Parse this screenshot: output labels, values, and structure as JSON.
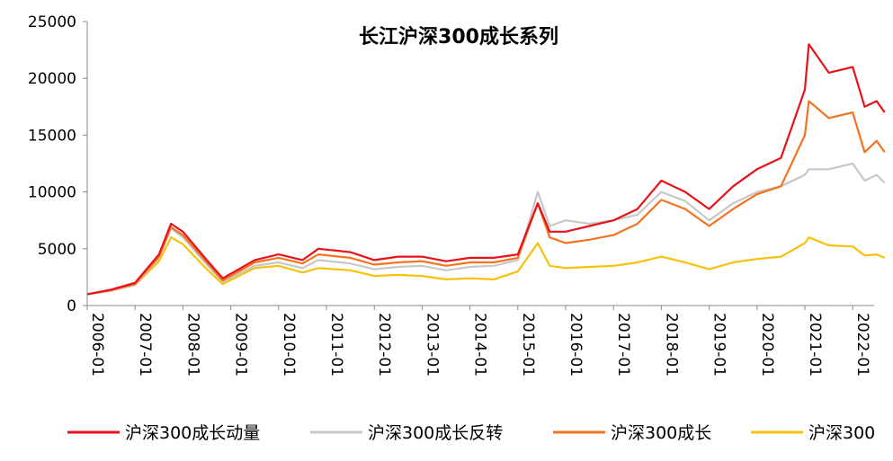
{
  "chart_data": {
    "type": "line",
    "title": "长江沪深300成长系列",
    "xlabel": "",
    "ylabel": "",
    "ylim": [
      0,
      25000
    ],
    "y_ticks": [
      0,
      5000,
      10000,
      15000,
      20000,
      25000
    ],
    "y_tick_labels": [
      "0",
      "5000",
      "10000",
      "15000",
      "20000",
      "25000"
    ],
    "x_tick_labels": [
      "2006-01",
      "2007-01",
      "2008-01",
      "2009-01",
      "2010-01",
      "2011-01",
      "2012-01",
      "2013-01",
      "2014-01",
      "2015-01",
      "2016-01",
      "2017-01",
      "2018-01",
      "2019-01",
      "2020-01",
      "2021-01",
      "2022-01"
    ],
    "legend_position": "bottom",
    "grid": false,
    "x": [
      "2006-01",
      "2006-07",
      "2007-01",
      "2007-07",
      "2007-10",
      "2008-01",
      "2008-07",
      "2008-11",
      "2009-07",
      "2010-01",
      "2010-07",
      "2010-11",
      "2011-07",
      "2012-01",
      "2012-07",
      "2013-01",
      "2013-07",
      "2014-01",
      "2014-07",
      "2015-01",
      "2015-06",
      "2015-09",
      "2016-01",
      "2016-07",
      "2017-01",
      "2017-07",
      "2018-01",
      "2018-07",
      "2019-01",
      "2019-07",
      "2020-01",
      "2020-07",
      "2021-01",
      "2021-02",
      "2021-07",
      "2022-01",
      "2022-04",
      "2022-07",
      "2022-09"
    ],
    "series": [
      {
        "name": "沪深300成长动量",
        "color": "#e8121a",
        "values": [
          1000,
          1400,
          2000,
          4500,
          7200,
          6500,
          4000,
          2400,
          4000,
          4500,
          4000,
          5000,
          4700,
          4000,
          4300,
          4300,
          3900,
          4200,
          4200,
          4500,
          9000,
          6500,
          6500,
          7000,
          7500,
          8500,
          11000,
          10000,
          8500,
          10500,
          12000,
          13000,
          19000,
          23000,
          20500,
          21000,
          17500,
          18000,
          17000
        ]
      },
      {
        "name": "沪深300成长反转",
        "color": "#c8c8c8",
        "values": [
          1000,
          1300,
          1800,
          4200,
          6800,
          6000,
          3600,
          2100,
          3500,
          3800,
          3300,
          4000,
          3700,
          3200,
          3400,
          3500,
          3100,
          3400,
          3500,
          4000,
          10000,
          7000,
          7500,
          7200,
          7500,
          8000,
          10000,
          9200,
          7500,
          9000,
          10000,
          10500,
          11500,
          12000,
          12000,
          12500,
          11000,
          11500,
          10800
        ]
      },
      {
        "name": "沪深300成长",
        "color": "#f5731f",
        "values": [
          1000,
          1350,
          1900,
          4300,
          6900,
          6200,
          3800,
          2200,
          3800,
          4200,
          3700,
          4500,
          4200,
          3600,
          3800,
          3900,
          3500,
          3800,
          3800,
          4200,
          9000,
          6000,
          5500,
          5800,
          6200,
          7200,
          9300,
          8500,
          7000,
          8500,
          9800,
          10500,
          15000,
          18000,
          16500,
          17000,
          13500,
          14500,
          13500
        ]
      },
      {
        "name": "沪深300",
        "color": "#f9c00c",
        "values": [
          1000,
          1300,
          1800,
          3900,
          6000,
          5400,
          3200,
          1900,
          3300,
          3500,
          2900,
          3300,
          3100,
          2600,
          2700,
          2600,
          2300,
          2400,
          2300,
          3000,
          5500,
          3500,
          3300,
          3400,
          3500,
          3800,
          4300,
          3800,
          3200,
          3800,
          4100,
          4300,
          5500,
          6000,
          5300,
          5200,
          4400,
          4500,
          4200
        ]
      }
    ]
  }
}
